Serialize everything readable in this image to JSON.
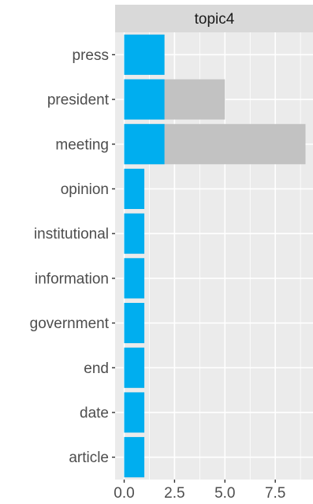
{
  "chart_data": {
    "type": "bar",
    "facet": "topic4",
    "orientation": "horizontal",
    "categories": [
      "press",
      "president",
      "meeting",
      "opinion",
      "institutional",
      "information",
      "government",
      "end",
      "date",
      "article"
    ],
    "series": [
      {
        "values": [
          2,
          5,
          9,
          1,
          1,
          1,
          1,
          1,
          1,
          1
        ],
        "color": "#c2c2c2"
      },
      {
        "values": [
          2,
          2,
          2,
          1,
          1,
          1,
          1,
          1,
          1,
          1
        ],
        "color": "#00aeef"
      }
    ],
    "xticks": [
      "0.0",
      "2.5",
      "5.0",
      "7.5"
    ],
    "xtick_values": [
      0,
      2.5,
      5,
      7.5
    ],
    "xlim": [
      -0.45,
      9.45
    ],
    "grid": true,
    "panel_background": "#ebebeb",
    "strip_background": "#d9d9d9"
  }
}
